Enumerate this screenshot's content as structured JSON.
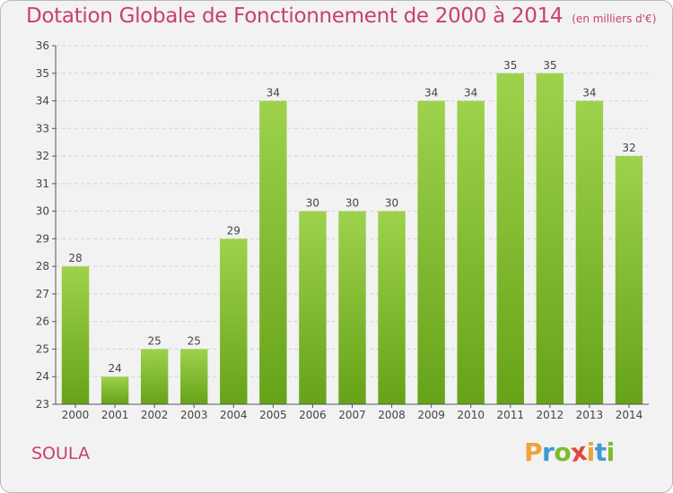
{
  "chart_data": {
    "type": "bar",
    "title": "Dotation Globale de Fonctionnement de 2000 à 2014",
    "subtitle": "(en milliers d'€)",
    "categories": [
      "2000",
      "2001",
      "2002",
      "2003",
      "2004",
      "2005",
      "2006",
      "2007",
      "2008",
      "2009",
      "2010",
      "2011",
      "2012",
      "2013",
      "2014"
    ],
    "values": [
      28,
      24,
      25,
      25,
      29,
      34,
      30,
      30,
      30,
      34,
      34,
      35,
      35,
      34,
      32
    ],
    "ylim": [
      23,
      36
    ],
    "yticks": [
      23,
      24,
      25,
      26,
      27,
      28,
      29,
      30,
      31,
      32,
      33,
      34,
      35,
      36
    ],
    "xlabel": "",
    "ylabel": "",
    "grid": true,
    "bar_color": "#7cbb2e"
  },
  "commune": "SOULA",
  "logo": {
    "letters": [
      "P",
      "r",
      "o",
      "x",
      "i",
      "t",
      "i"
    ],
    "colors": [
      "#f0a23a",
      "#3d9ad6",
      "#7cbb2e",
      "#e0493b",
      "#f0a23a",
      "#3d9ad6",
      "#7cbb2e"
    ]
  }
}
